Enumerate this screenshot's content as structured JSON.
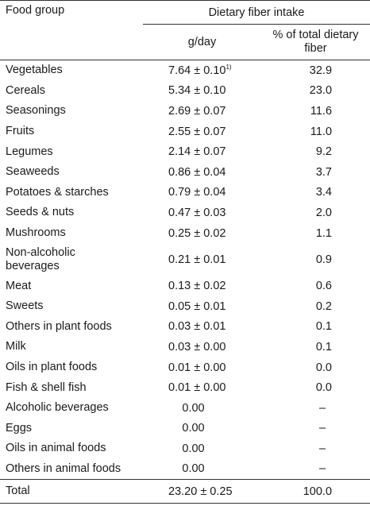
{
  "table": {
    "header": {
      "food_group": "Food group",
      "dietary_fiber_intake": "Dietary fiber intake",
      "g_day": "g/day",
      "pct_total_line1": "% of total dietary",
      "pct_total_line2": "fiber"
    },
    "rows": [
      {
        "food": "Vegetables",
        "gday": "7.64 ± 0.10",
        "footnote": "1)",
        "pct": "32.9"
      },
      {
        "food": "Cereals",
        "gday": "5.34 ± 0.10",
        "pct": "23.0"
      },
      {
        "food": "Seasonings",
        "gday": "2.69 ± 0.07",
        "pct": "11.6"
      },
      {
        "food": "Fruits",
        "gday": "2.55 ± 0.07",
        "pct": "11.0"
      },
      {
        "food": "Legumes",
        "gday": "2.14 ± 0.07",
        "pct": "9.2"
      },
      {
        "food": "Seaweeds",
        "gday": "0.86 ± 0.04",
        "pct": "3.7"
      },
      {
        "food": "Potatoes & starches",
        "gday": "0.79 ± 0.04",
        "pct": "3.4"
      },
      {
        "food": "Seeds & nuts",
        "gday": "0.47 ± 0.03",
        "pct": "2.0"
      },
      {
        "food": "Mushrooms",
        "gday": "0.25 ± 0.02",
        "pct": "1.1"
      },
      {
        "food_line1": "Non-alcoholic",
        "food_line2": "beverages",
        "gday": "0.21 ± 0.01",
        "pct": "0.9"
      },
      {
        "food": "Meat",
        "gday": "0.13 ± 0.02",
        "pct": "0.6"
      },
      {
        "food": "Sweets",
        "gday": "0.05 ± 0.01",
        "pct": "0.2"
      },
      {
        "food": "Others in plant foods",
        "gday": "0.03 ± 0.01",
        "pct": "0.1"
      },
      {
        "food": "Milk",
        "gday": "0.03 ± 0.00",
        "pct": "0.1"
      },
      {
        "food": "Oils in plant foods",
        "gday": "0.01 ± 0.00",
        "pct": "0.0"
      },
      {
        "food": "Fish & shell fish",
        "gday": "0.01 ± 0.00",
        "pct": "0.0"
      },
      {
        "food": "Alcoholic beverages",
        "gday": "0.00",
        "pct": "–"
      },
      {
        "food": "Eggs",
        "gday": "0.00",
        "pct": "–"
      },
      {
        "food": "Oils in animal foods",
        "gday": "0.00",
        "pct": "–"
      },
      {
        "food": "Others in animal foods",
        "gday": "0.00",
        "pct": "–"
      }
    ],
    "total": {
      "food": "Total",
      "gday": "23.20 ± 0.25",
      "pct": "100.0"
    }
  }
}
